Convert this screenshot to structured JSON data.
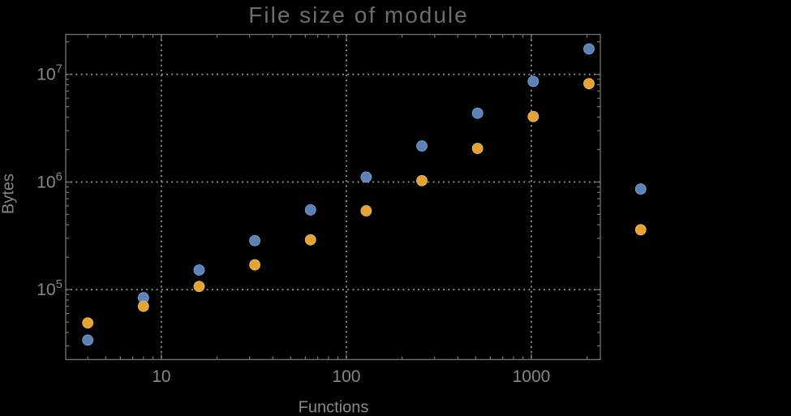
{
  "chart_data": {
    "type": "scatter",
    "title": "File size of module",
    "xlabel": "Functions",
    "ylabel": "Bytes",
    "x_scale": "log",
    "y_scale": "log",
    "xlim": [
      3.04,
      2360
    ],
    "ylim": [
      22400,
      23470000
    ],
    "grid": "dotted, at major decades only",
    "legend": "none",
    "frame": true,
    "x_ticks": [
      {
        "value": 10,
        "label": "10"
      },
      {
        "value": 100,
        "label": "100"
      },
      {
        "value": 1000,
        "label": "1000"
      }
    ],
    "y_ticks": [
      {
        "value": 100000,
        "base": "10",
        "exp": "5"
      },
      {
        "value": 1000000,
        "base": "10",
        "exp": "6"
      },
      {
        "value": 10000000,
        "base": "10",
        "exp": "7"
      }
    ],
    "x": [
      4,
      8,
      16,
      32,
      64,
      128,
      256,
      512,
      1024,
      2048,
      3900
    ],
    "series": [
      {
        "name": "blue",
        "color": "#5c81b8",
        "edge_color": "#7fa8d4",
        "values": [
          34000,
          84000,
          152000,
          285000,
          550000,
          1110000,
          2160000,
          4350000,
          8600000,
          17200000,
          860000
        ]
      },
      {
        "name": "orange",
        "color": "#e5a335",
        "edge_color": "#eebc5e",
        "values": [
          49000,
          70000,
          107000,
          170000,
          290000,
          540000,
          1030000,
          2050000,
          4050000,
          8200000,
          360000
        ]
      }
    ],
    "note_points_outside_frame": "last x pair (~3900 functions) is plotted beyond the right frame edge (no plot-range clipping)"
  },
  "style": {
    "background": "#000000",
    "frame_color": "#747474",
    "grid_color": "#909090",
    "title_color": "#6d6d6d",
    "axis_label_color": "#888888",
    "tick_label_color": "#878787"
  }
}
